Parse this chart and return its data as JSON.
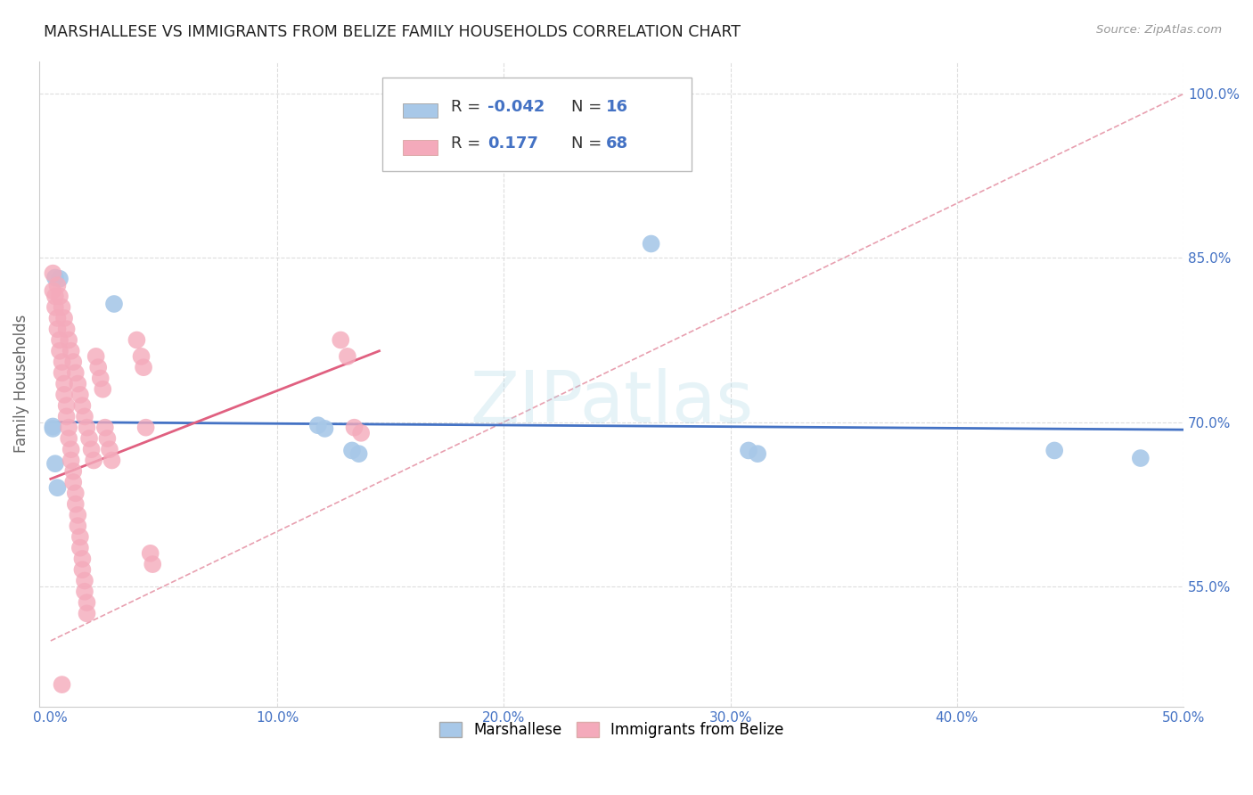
{
  "title": "MARSHALLESE VS IMMIGRANTS FROM BELIZE FAMILY HOUSEHOLDS CORRELATION CHART",
  "source": "Source: ZipAtlas.com",
  "ylabel": "Family Households",
  "xlim": [
    -0.005,
    0.5
  ],
  "ylim": [
    0.44,
    1.03
  ],
  "yticks": [
    0.55,
    0.7,
    0.85,
    1.0
  ],
  "ytick_labels": [
    "55.0%",
    "70.0%",
    "85.0%",
    "100.0%"
  ],
  "xticks": [
    0.0,
    0.1,
    0.2,
    0.3,
    0.4,
    0.5
  ],
  "xtick_labels": [
    "0.0%",
    "10.0%",
    "20.0%",
    "30.0%",
    "40.0%",
    "50.0%"
  ],
  "blue_color": "#A8C8E8",
  "pink_color": "#F4AABB",
  "blue_line_color": "#4472C4",
  "pink_line_color": "#E06080",
  "diagonal_color": "#E8A0B0",
  "watermark": "ZIPatlas",
  "background_color": "#FFFFFF",
  "grid_color": "#DDDDDD",
  "blue_points_x": [
    0.002,
    0.004,
    0.028,
    0.001,
    0.001,
    0.002,
    0.003,
    0.118,
    0.121,
    0.133,
    0.136,
    0.265,
    0.308,
    0.312,
    0.443,
    0.481
  ],
  "blue_points_y": [
    0.832,
    0.831,
    0.808,
    0.696,
    0.694,
    0.662,
    0.64,
    0.697,
    0.694,
    0.674,
    0.671,
    0.863,
    0.674,
    0.671,
    0.674,
    0.667
  ],
  "pink_points_x": [
    0.001,
    0.001,
    0.002,
    0.002,
    0.003,
    0.003,
    0.004,
    0.004,
    0.005,
    0.005,
    0.006,
    0.006,
    0.007,
    0.007,
    0.008,
    0.008,
    0.009,
    0.009,
    0.01,
    0.01,
    0.011,
    0.011,
    0.012,
    0.012,
    0.013,
    0.013,
    0.014,
    0.014,
    0.015,
    0.015,
    0.016,
    0.016,
    0.02,
    0.021,
    0.022,
    0.023,
    0.024,
    0.025,
    0.026,
    0.027,
    0.038,
    0.04,
    0.041,
    0.042,
    0.044,
    0.045,
    0.128,
    0.131,
    0.134,
    0.137,
    0.003,
    0.004,
    0.005,
    0.006,
    0.007,
    0.008,
    0.009,
    0.01,
    0.011,
    0.012,
    0.013,
    0.014,
    0.015,
    0.016,
    0.017,
    0.018,
    0.019,
    0.005
  ],
  "pink_points_y": [
    0.836,
    0.82,
    0.815,
    0.805,
    0.795,
    0.785,
    0.775,
    0.765,
    0.755,
    0.745,
    0.735,
    0.725,
    0.715,
    0.705,
    0.695,
    0.685,
    0.675,
    0.665,
    0.655,
    0.645,
    0.635,
    0.625,
    0.615,
    0.605,
    0.595,
    0.585,
    0.575,
    0.565,
    0.555,
    0.545,
    0.535,
    0.525,
    0.76,
    0.75,
    0.74,
    0.73,
    0.695,
    0.685,
    0.675,
    0.665,
    0.775,
    0.76,
    0.75,
    0.695,
    0.58,
    0.57,
    0.775,
    0.76,
    0.695,
    0.69,
    0.825,
    0.815,
    0.805,
    0.795,
    0.785,
    0.775,
    0.765,
    0.755,
    0.745,
    0.735,
    0.725,
    0.715,
    0.705,
    0.695,
    0.685,
    0.675,
    0.665,
    0.46
  ]
}
